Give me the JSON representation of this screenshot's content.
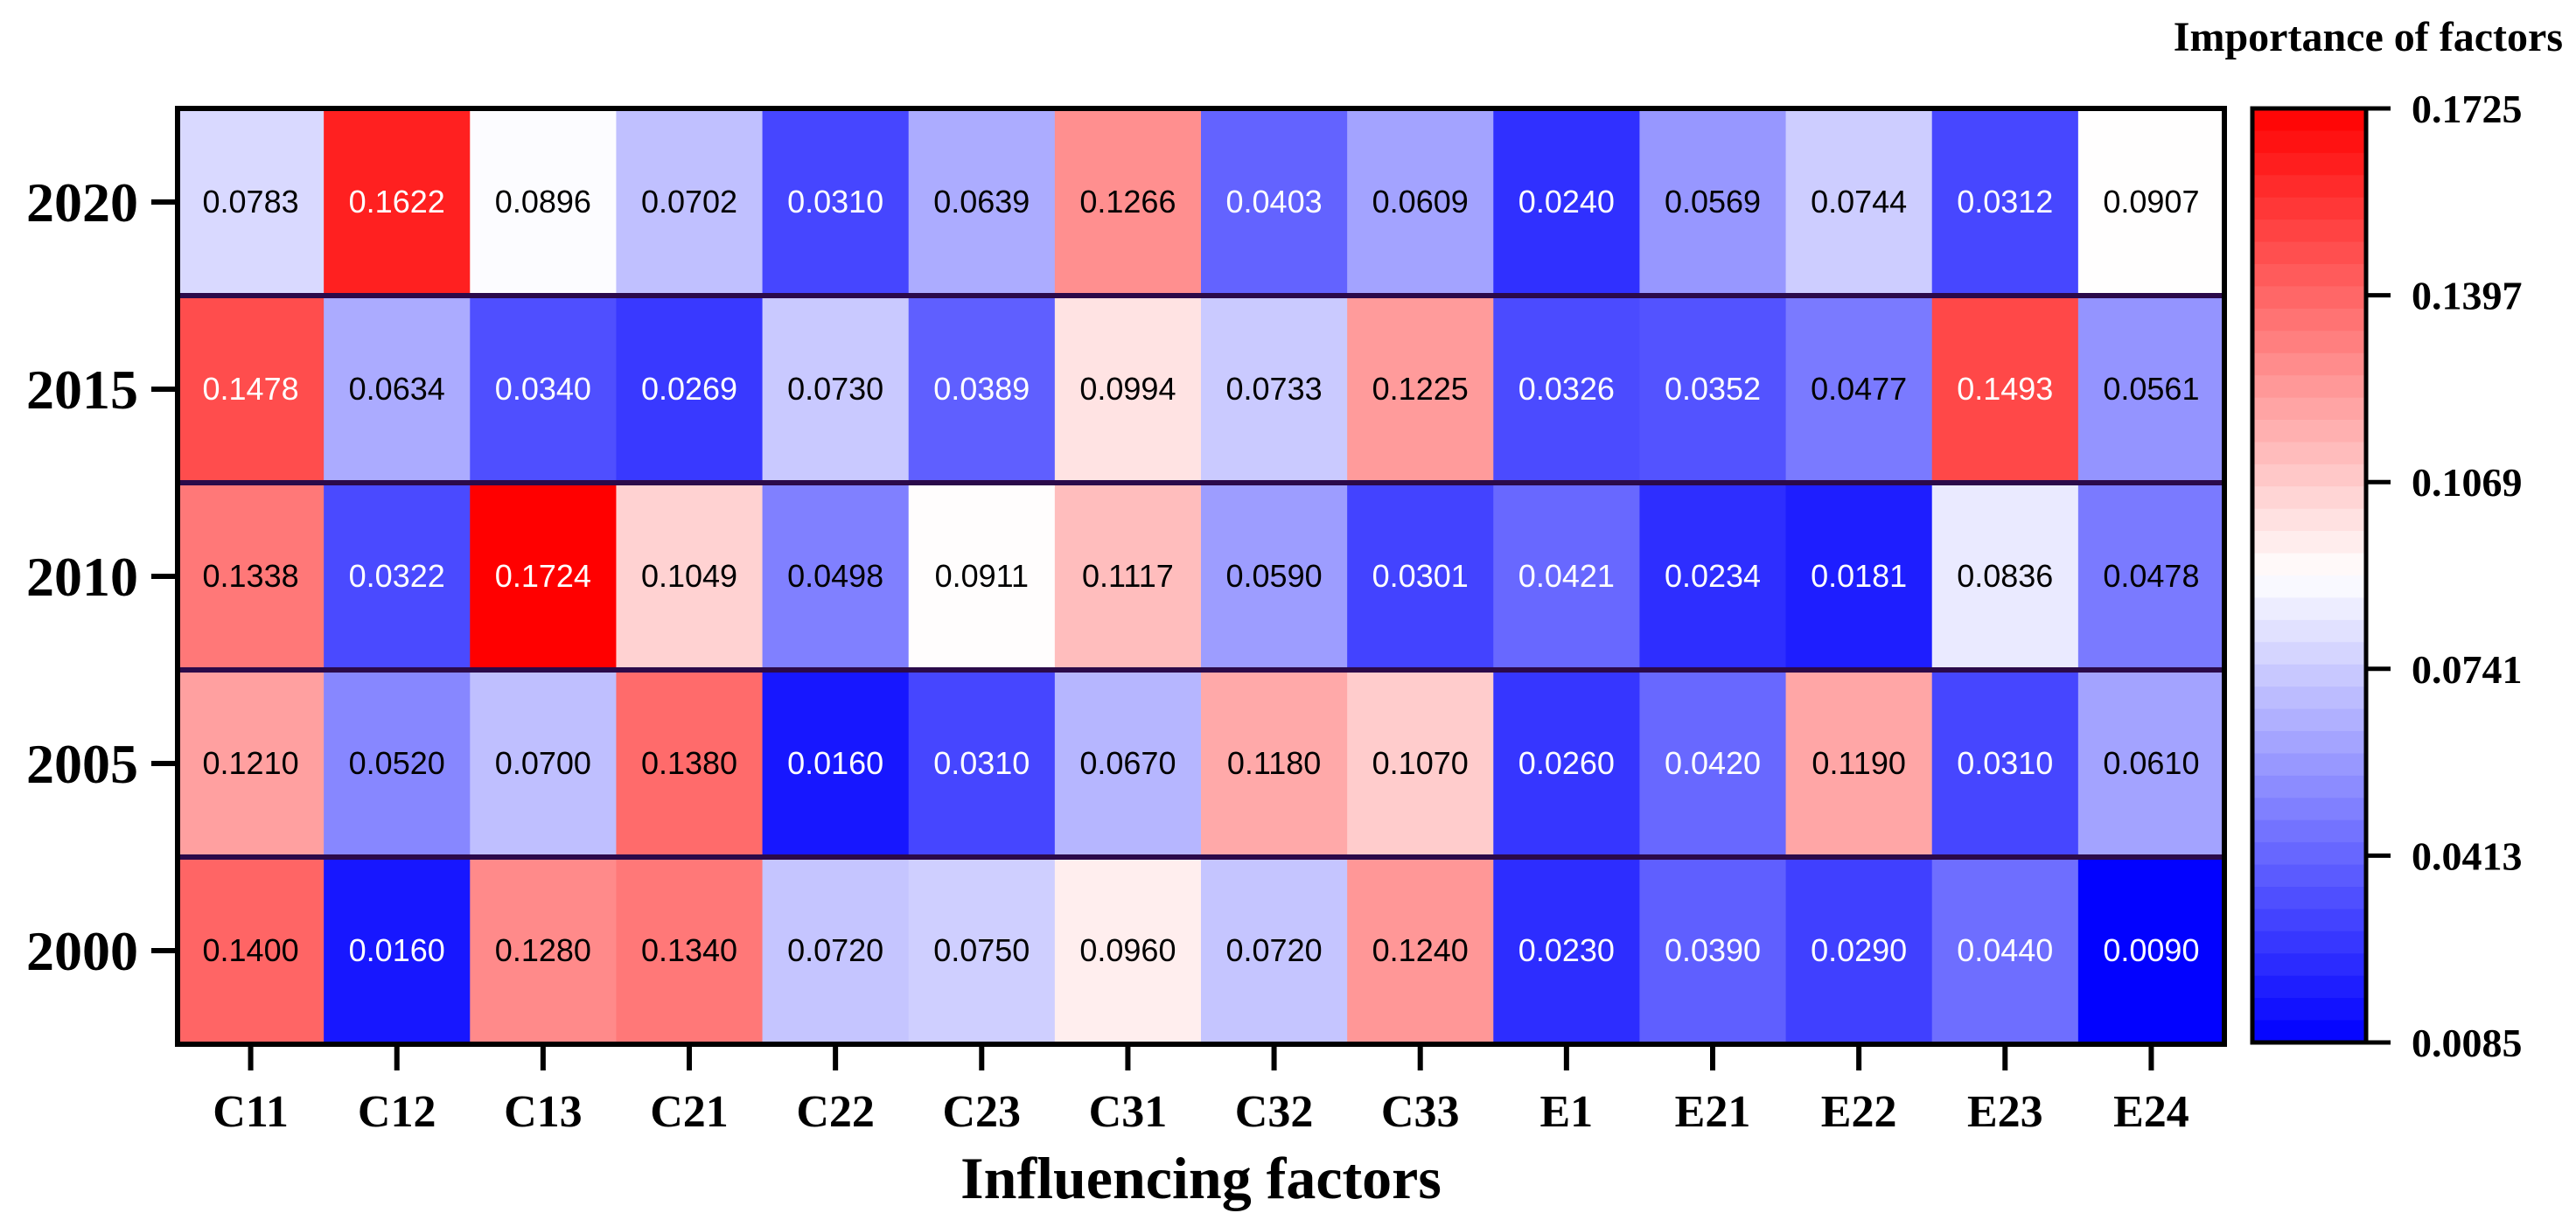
{
  "chart_data": {
    "type": "heatmap",
    "xlabel": "Influencing factors",
    "ylabel": "",
    "colorbar_title": "Importance of factors",
    "categories_x": [
      "C11",
      "C12",
      "C13",
      "C21",
      "C22",
      "C23",
      "C31",
      "C32",
      "C33",
      "E1",
      "E21",
      "E22",
      "E23",
      "E24"
    ],
    "categories_y": [
      "2020",
      "2015",
      "2010",
      "2005",
      "2000"
    ],
    "values": [
      [
        0.0783,
        0.1622,
        0.0896,
        0.0702,
        0.031,
        0.0639,
        0.1266,
        0.0403,
        0.0609,
        0.024,
        0.0569,
        0.0744,
        0.0312,
        0.0907
      ],
      [
        0.1478,
        0.0634,
        0.034,
        0.0269,
        0.073,
        0.0389,
        0.0994,
        0.0733,
        0.1225,
        0.0326,
        0.0352,
        0.0477,
        0.1493,
        0.0561
      ],
      [
        0.1338,
        0.0322,
        0.1724,
        0.1049,
        0.0498,
        0.0911,
        0.1117,
        0.059,
        0.0301,
        0.0421,
        0.0234,
        0.0181,
        0.0836,
        0.0478
      ],
      [
        0.121,
        0.052,
        0.07,
        0.138,
        0.016,
        0.031,
        0.067,
        0.118,
        0.107,
        0.026,
        0.042,
        0.119,
        0.031,
        0.061
      ],
      [
        0.14,
        0.016,
        0.128,
        0.134,
        0.072,
        0.075,
        0.096,
        0.072,
        0.124,
        0.023,
        0.039,
        0.029,
        0.044,
        0.009
      ]
    ],
    "labels": [
      [
        "0.0783",
        "0.1622",
        "0.0896",
        "0.0702",
        "0.0310",
        "0.0639",
        "0.1266",
        "0.0403",
        "0.0609",
        "0.0240",
        "0.0569",
        "0.0744",
        "0.0312",
        "0.0907"
      ],
      [
        "0.1478",
        "0.0634",
        "0.0340",
        "0.0269",
        "0.0730",
        "0.0389",
        "0.0994",
        "0.0733",
        "0.1225",
        "0.0326",
        "0.0352",
        "0.0477",
        "0.1493",
        "0.0561"
      ],
      [
        "0.1338",
        "0.0322",
        "0.1724",
        "0.1049",
        "0.0498",
        "0.0911",
        "0.1117",
        "0.0590",
        "0.0301",
        "0.0421",
        "0.0234",
        "0.0181",
        "0.0836",
        "0.0478"
      ],
      [
        "0.1210",
        "0.0520",
        "0.0700",
        "0.1380",
        "0.0160",
        "0.0310",
        "0.0670",
        "0.1180",
        "0.1070",
        "0.0260",
        "0.0420",
        "0.1190",
        "0.0310",
        "0.0610"
      ],
      [
        "0.1400",
        "0.0160",
        "0.1280",
        "0.1340",
        "0.0720",
        "0.0750",
        "0.0960",
        "0.0720",
        "0.1240",
        "0.0230",
        "0.0390",
        "0.0290",
        "0.0440",
        "0.0090"
      ]
    ],
    "colorbar_range": [
      0.0085,
      0.1725
    ],
    "colorbar_ticks": [
      "0.1725",
      "0.1397",
      "0.1069",
      "0.0741",
      "0.0413",
      "0.0085"
    ],
    "colormap": {
      "low": "#0000ff",
      "mid": "#ffffff",
      "high": "#ff0000"
    },
    "grid_color": "#2b0a4a"
  }
}
